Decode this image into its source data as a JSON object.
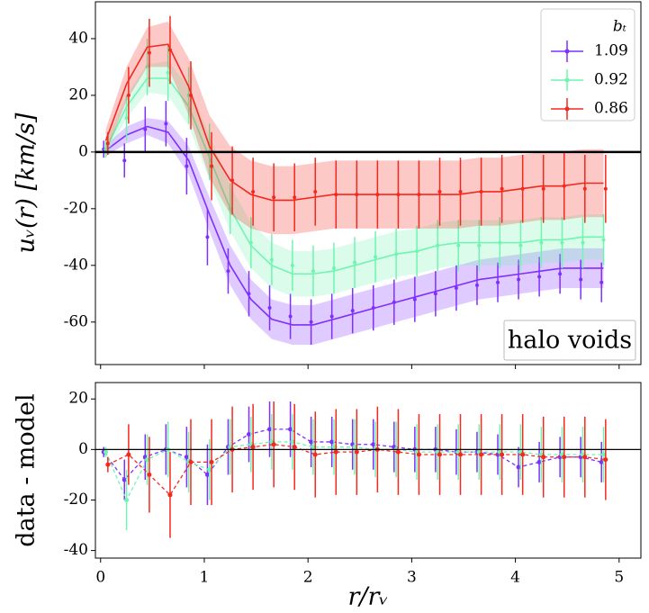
{
  "chart_data": [
    {
      "type": "line",
      "ylabel": "uᵥ(r) [km/s]",
      "annotation": "halo voids",
      "legend_title": "bₜ",
      "legend": "upper right",
      "xlim": [
        -0.05,
        5.21
      ],
      "ylim": [
        -75,
        53
      ],
      "xticks": [
        0,
        1,
        2,
        3,
        4,
        5
      ],
      "yticks": [
        -60,
        -40,
        -20,
        0,
        20,
        40
      ],
      "x": [
        0.05,
        0.25,
        0.45,
        0.65,
        0.85,
        1.05,
        1.25,
        1.45,
        1.65,
        1.85,
        2.05,
        2.25,
        2.45,
        2.65,
        2.85,
        3.05,
        3.25,
        3.45,
        3.65,
        3.85,
        4.05,
        4.25,
        4.45,
        4.65,
        4.85
      ],
      "series": [
        {
          "name": "1.09",
          "color": "#7f2fff",
          "values": [
            0.5,
            6,
            9,
            7,
            -3,
            -22,
            -40,
            -52,
            -59,
            -61,
            -61,
            -59,
            -57,
            -55,
            -53,
            -51,
            -49,
            -47,
            -45,
            -44,
            -43,
            -42,
            -41,
            -41,
            -41
          ],
          "band": [
            2,
            3,
            3,
            4,
            5,
            6,
            7,
            7,
            7,
            7,
            7,
            7,
            7,
            7,
            7,
            7,
            7,
            7,
            7,
            7,
            7,
            7,
            7,
            7,
            7
          ],
          "data": [
            1,
            -3,
            8,
            10,
            -5,
            -30,
            -42,
            -50,
            -55,
            -58,
            -60,
            -58,
            -56,
            -55,
            -53,
            -52,
            -50,
            -48,
            -47,
            -46,
            -45,
            -44,
            -43,
            -45,
            -46
          ],
          "data_err": [
            3,
            6,
            8,
            8,
            10,
            10,
            8,
            8,
            8,
            8,
            8,
            8,
            8,
            8,
            8,
            8,
            8,
            8,
            7,
            7,
            7,
            7,
            7,
            7,
            7
          ]
        },
        {
          "name": "0.92",
          "color": "#6ff5b0",
          "values": [
            1,
            16,
            26,
            26,
            16,
            -2,
            -20,
            -33,
            -40,
            -43,
            -43,
            -42,
            -40,
            -38,
            -36,
            -35,
            -33,
            -32,
            -32,
            -32,
            -32,
            -31,
            -31,
            -30,
            -30
          ],
          "band": [
            3,
            4,
            5,
            6,
            7,
            8,
            8,
            8,
            8,
            8,
            8,
            8,
            8,
            8,
            8,
            8,
            8,
            8,
            8,
            8,
            8,
            8,
            8,
            8,
            8
          ],
          "data": [
            1,
            12,
            30,
            28,
            20,
            0,
            -20,
            -32,
            -38,
            -40,
            -42,
            -41,
            -39,
            -37,
            -36,
            -35,
            -33,
            -33,
            -33,
            -32,
            -33,
            -32,
            -32,
            -32,
            -31
          ],
          "data_err": [
            3,
            8,
            10,
            10,
            10,
            10,
            9,
            9,
            9,
            9,
            9,
            9,
            9,
            9,
            9,
            9,
            9,
            9,
            9,
            9,
            9,
            9,
            9,
            9,
            9
          ]
        },
        {
          "name": "0.86",
          "color": "#f5281e",
          "values": [
            4,
            24,
            37,
            38,
            23,
            2,
            -10,
            -15,
            -17,
            -17,
            -16,
            -15,
            -15,
            -15,
            -15,
            -15,
            -15,
            -15,
            -14,
            -14,
            -13,
            -12,
            -12,
            -11,
            -11
          ],
          "band": [
            4,
            6,
            7,
            8,
            10,
            11,
            12,
            12,
            12,
            12,
            12,
            12,
            12,
            12,
            12,
            12,
            12,
            12,
            12,
            12,
            12,
            12,
            12,
            12,
            12
          ],
          "data": [
            3,
            20,
            35,
            36,
            20,
            -5,
            -10,
            -14,
            -16,
            -16,
            -14,
            -15,
            -15,
            -15,
            -15,
            -15,
            -14,
            -14,
            -14,
            -13,
            -13,
            -13,
            -12,
            -13,
            -13
          ],
          "data_err": [
            4,
            10,
            12,
            12,
            12,
            12,
            12,
            12,
            12,
            12,
            12,
            12,
            12,
            12,
            12,
            12,
            12,
            12,
            12,
            12,
            12,
            12,
            12,
            12,
            12
          ]
        }
      ]
    },
    {
      "type": "residual",
      "ylabel": "data - model",
      "xlabel": "r/rᵥ",
      "xlim": [
        -0.05,
        5.21
      ],
      "ylim": [
        -43,
        26.5
      ],
      "xticks": [
        0,
        1,
        2,
        3,
        4,
        5
      ],
      "yticks": [
        -40,
        -20,
        0,
        20
      ],
      "x": [
        0.05,
        0.25,
        0.45,
        0.65,
        0.85,
        1.05,
        1.25,
        1.45,
        1.65,
        1.85,
        2.05,
        2.25,
        2.45,
        2.65,
        2.85,
        3.05,
        3.25,
        3.45,
        3.65,
        3.85,
        4.05,
        4.25,
        4.45,
        4.65,
        4.85
      ],
      "series": [
        {
          "color": "#7f2fff",
          "values": [
            -1,
            -12,
            -3,
            0,
            -3,
            -10,
            1,
            6,
            8,
            8,
            3,
            3,
            2,
            2,
            1,
            0,
            0,
            -1,
            -1,
            -2,
            -7,
            -5,
            -3,
            -3,
            -5
          ],
          "err": [
            2,
            8,
            9,
            10,
            12,
            12,
            11,
            11,
            11,
            11,
            10,
            10,
            10,
            10,
            10,
            9,
            9,
            9,
            8,
            8,
            8,
            8,
            8,
            8,
            8
          ]
        },
        {
          "color": "#6ff5b0",
          "values": [
            -1,
            -20,
            -4,
            0,
            -5,
            -8,
            1,
            2,
            3,
            3,
            1,
            1,
            1,
            0,
            0,
            -1,
            -1,
            -1,
            -1,
            -1,
            -1,
            -2,
            -2,
            -2,
            -2
          ],
          "err": [
            2,
            12,
            10,
            11,
            12,
            12,
            11,
            11,
            11,
            11,
            11,
            11,
            11,
            11,
            11,
            11,
            11,
            11,
            11,
            11,
            11,
            11,
            11,
            11,
            11
          ]
        },
        {
          "color": "#f5281e",
          "values": [
            -6,
            -2,
            -10,
            -18,
            -5,
            -5,
            0,
            1,
            2,
            1,
            -2,
            -1,
            -1,
            0,
            -1,
            -2,
            -2,
            -2,
            -2,
            -2,
            -2,
            -3,
            -3,
            -3,
            -4
          ],
          "err": [
            3,
            12,
            15,
            17,
            17,
            17,
            17,
            17,
            17,
            17,
            17,
            17,
            17,
            17,
            17,
            16,
            16,
            16,
            16,
            16,
            16,
            16,
            16,
            16,
            16
          ]
        }
      ]
    }
  ]
}
